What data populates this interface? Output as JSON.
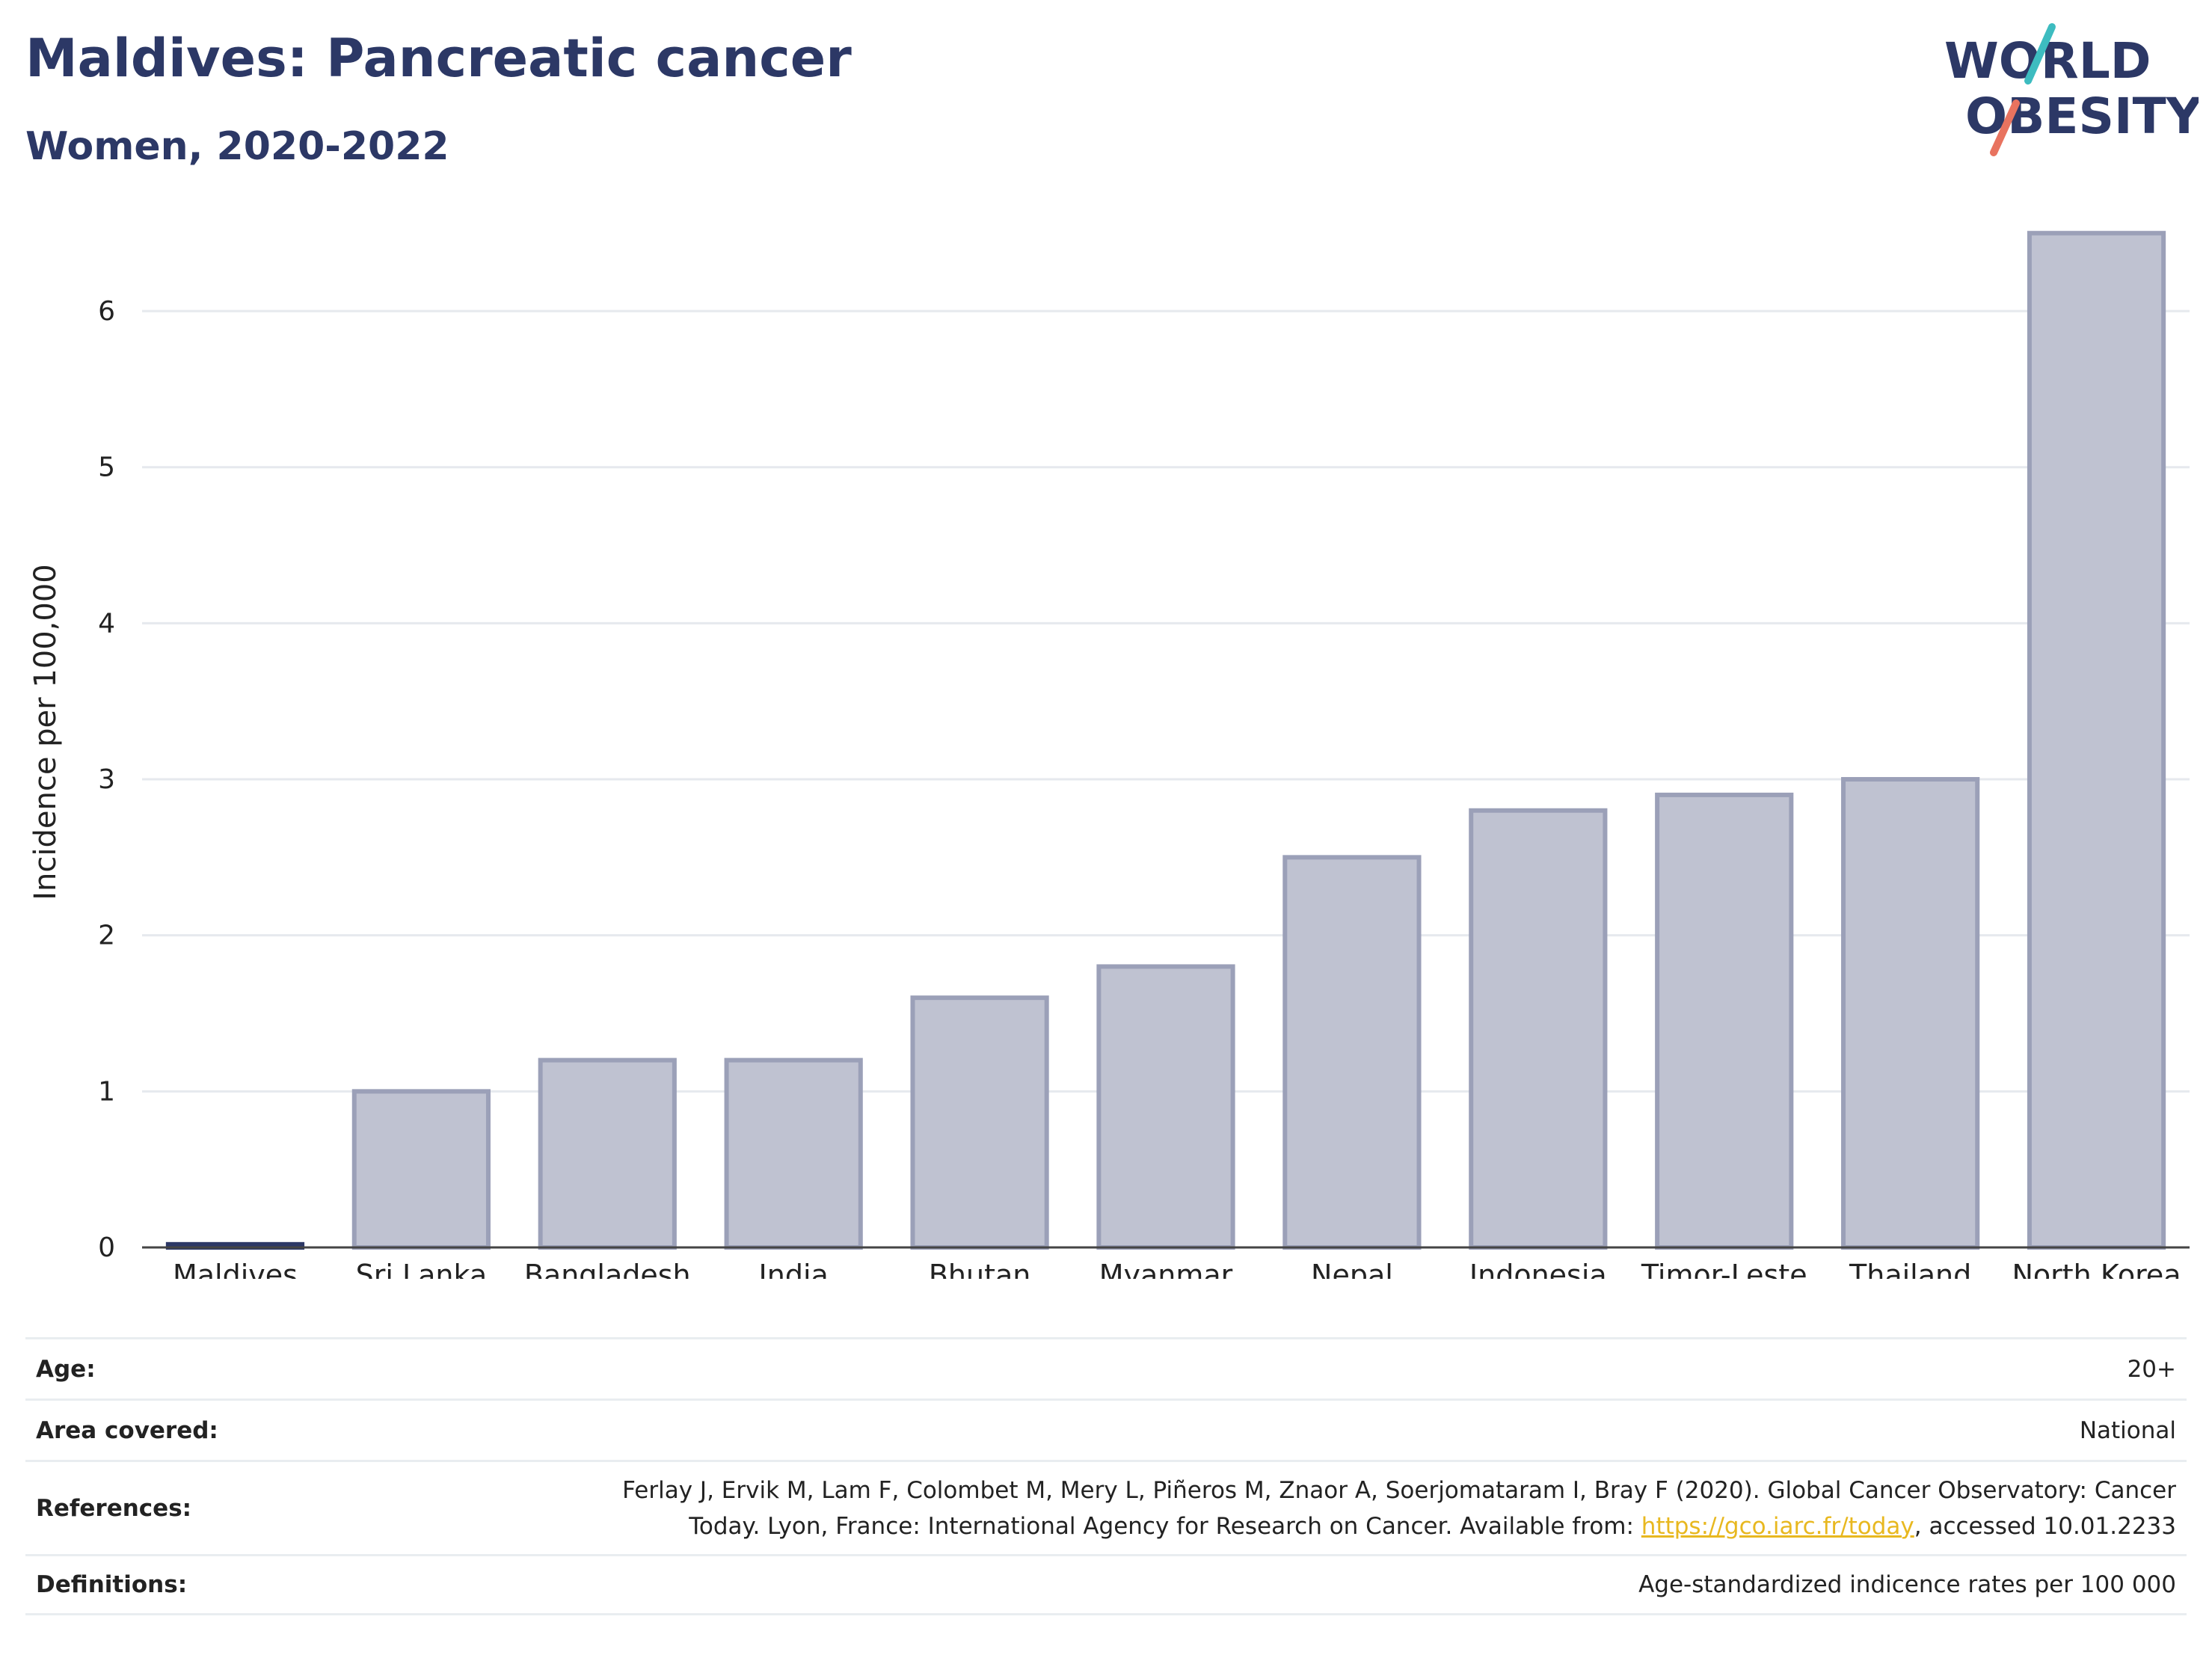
{
  "header": {
    "title": "Maldives: Pancreatic cancer",
    "subtitle": "Women, 2020-2022",
    "logo_line1": "WORLD",
    "logo_line2": "OBESITY"
  },
  "colors": {
    "highlight_bar": "#2c3866",
    "other_bar_fill": "#bfc2d1",
    "other_bar_stroke": "#9ba0b8",
    "grid": "#e6e9ee",
    "logo_text": "#2c3866",
    "logo_teal": "#3dbcc0",
    "logo_coral": "#e8735f",
    "link": "#e8b820"
  },
  "chart_data": {
    "type": "bar",
    "categories": [
      "Maldives",
      "Sri Lanka",
      "Bangladesh",
      "India",
      "Bhutan",
      "Myanmar",
      "Nepal",
      "Indonesia",
      "Timor-Leste",
      "Thailand",
      "North Korea"
    ],
    "values": [
      0.02,
      1.0,
      1.2,
      1.2,
      1.6,
      1.8,
      2.5,
      2.8,
      2.9,
      3.0,
      6.5
    ],
    "highlight": "Maldives",
    "ylabel": "Incidence per 100,000",
    "ylim": [
      0,
      6.7
    ],
    "yticks": [
      0,
      1,
      2,
      3,
      4,
      5,
      6
    ],
    "grid": true
  },
  "info": {
    "age": {
      "label": "Age:",
      "value": "20+"
    },
    "area": {
      "label": "Area covered:",
      "value": "National"
    },
    "references": {
      "label": "References:",
      "line1": "Ferlay J, Ervik M, Lam F, Colombet M, Mery L, Piñeros M, Znaor A, Soerjomataram I, Bray F (2020). Global Cancer Observatory: Cancer",
      "line2_prefix": "Today. Lyon, France: International Agency for Research on Cancer. Available from: ",
      "link": "https://gco.iarc.fr/today",
      "line2_suffix": ", accessed 10.01.2233"
    },
    "definitions": {
      "label": "Definitions:",
      "value": "Age-standardized indicence rates per 100 000"
    }
  }
}
